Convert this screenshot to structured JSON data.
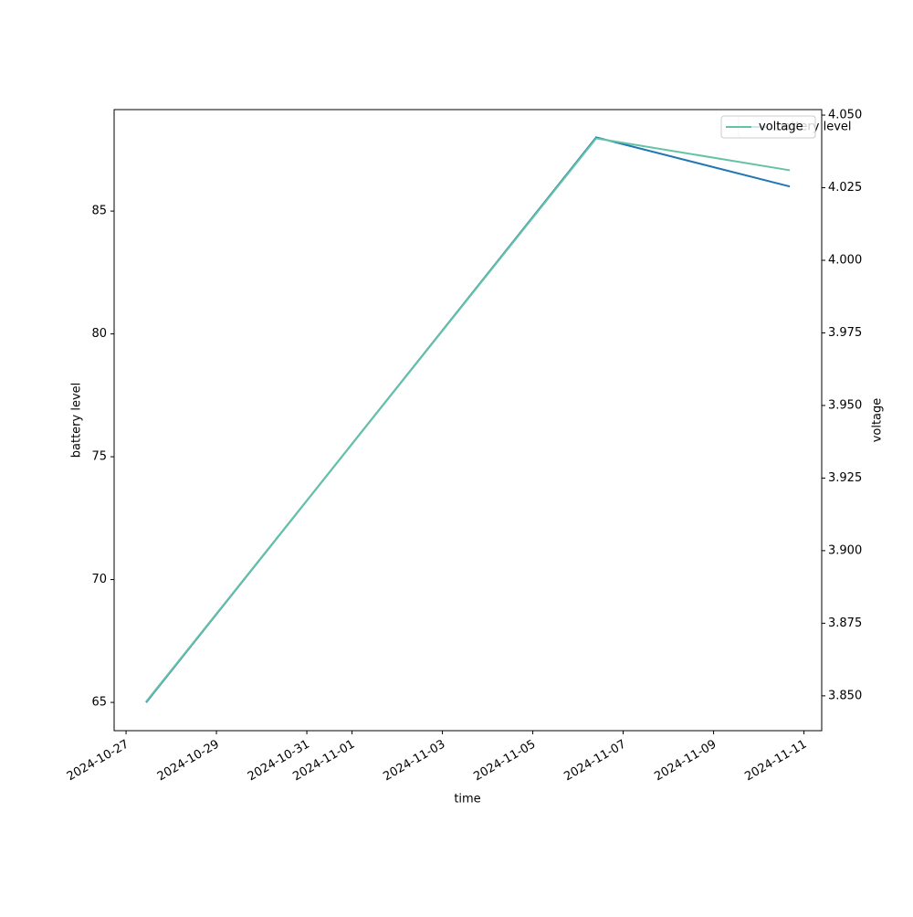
{
  "chart_data": {
    "type": "line",
    "xlabel": "time",
    "ylabel": "battery level",
    "y2label": "voltage",
    "x": [
      "2024-10-27T10:40",
      "2024-11-06T09:40",
      "2024-11-10T16:30"
    ],
    "series": [
      {
        "name": "battery level",
        "color": "#1f77b4",
        "values": [
          65,
          88,
          86
        ]
      },
      {
        "name": "voltage",
        "color": "#66c2a5",
        "values": [
          3.848,
          4.042,
          4.031
        ],
        "axis": "y2"
      }
    ],
    "xlim": [
      "2024-10-26T17:40",
      "2024-11-11T09:25"
    ],
    "xticks": [
      "2024-10-27",
      "2024-10-29",
      "2024-10-31",
      "2024-11-01",
      "2024-11-03",
      "2024-11-05",
      "2024-11-07",
      "2024-11-09",
      "2024-11-11"
    ],
    "ylim": [
      63.85,
      89.13
    ],
    "yticks": [
      65,
      70,
      75,
      80,
      85
    ],
    "y2lim": [
      3.838,
      4.0519
    ],
    "y2ticks": [
      {
        "value": 3.85,
        "label": "3.850"
      },
      {
        "value": 3.875,
        "label": "3.875"
      },
      {
        "value": 3.9,
        "label": "3.900"
      },
      {
        "value": 3.925,
        "label": "3.925"
      },
      {
        "value": 3.95,
        "label": "3.950"
      },
      {
        "value": 3.975,
        "label": "3.975"
      },
      {
        "value": 4.0,
        "label": "4.000"
      },
      {
        "value": 4.025,
        "label": "4.025"
      },
      {
        "value": 4.05,
        "label": "4.050"
      }
    ],
    "legend": "upper right",
    "grid": false
  }
}
